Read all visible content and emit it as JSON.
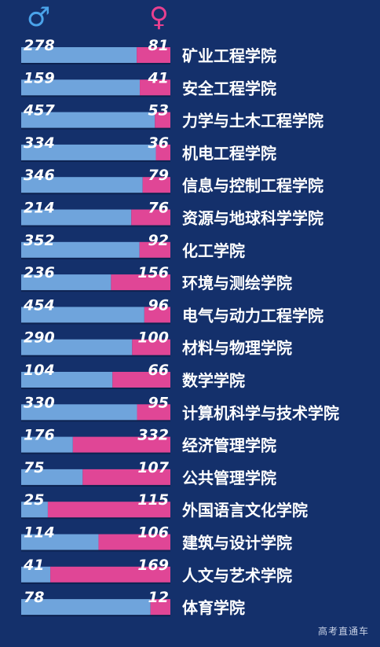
{
  "legend": {
    "male_icon": "male-symbol-icon",
    "female_icon": "female-symbol-icon"
  },
  "colors": {
    "background": "#14306b",
    "male_bar": "#6fa4dc",
    "female_bar": "#e04696",
    "label_text": "#ffffff"
  },
  "watermark": "高考直通车",
  "chart_data": {
    "type": "bar",
    "stacked": "100%",
    "orientation": "horizontal",
    "categories": [
      "矿业工程学院",
      "安全工程学院",
      "力学与土木工程学院",
      "机电工程学院",
      "信息与控制工程学院",
      "资源与地球科学学院",
      "化工学院",
      "环境与测绘学院",
      "电气与动力工程学院",
      "材料与物理学院",
      "数学学院",
      "计算机科学与技术学院",
      "经济管理学院",
      "公共管理学院",
      "外国语言文化学院",
      "建筑与设计学院",
      "人文与艺术学院",
      "体育学院"
    ],
    "series": [
      {
        "symbol": "♂",
        "values": [
          278,
          159,
          457,
          334,
          346,
          214,
          352,
          236,
          454,
          290,
          104,
          330,
          176,
          75,
          25,
          114,
          41,
          78
        ]
      },
      {
        "symbol": "♀",
        "values": [
          81,
          41,
          53,
          36,
          79,
          76,
          92,
          156,
          96,
          100,
          66,
          95,
          332,
          107,
          115,
          106,
          169,
          12
        ]
      }
    ]
  }
}
